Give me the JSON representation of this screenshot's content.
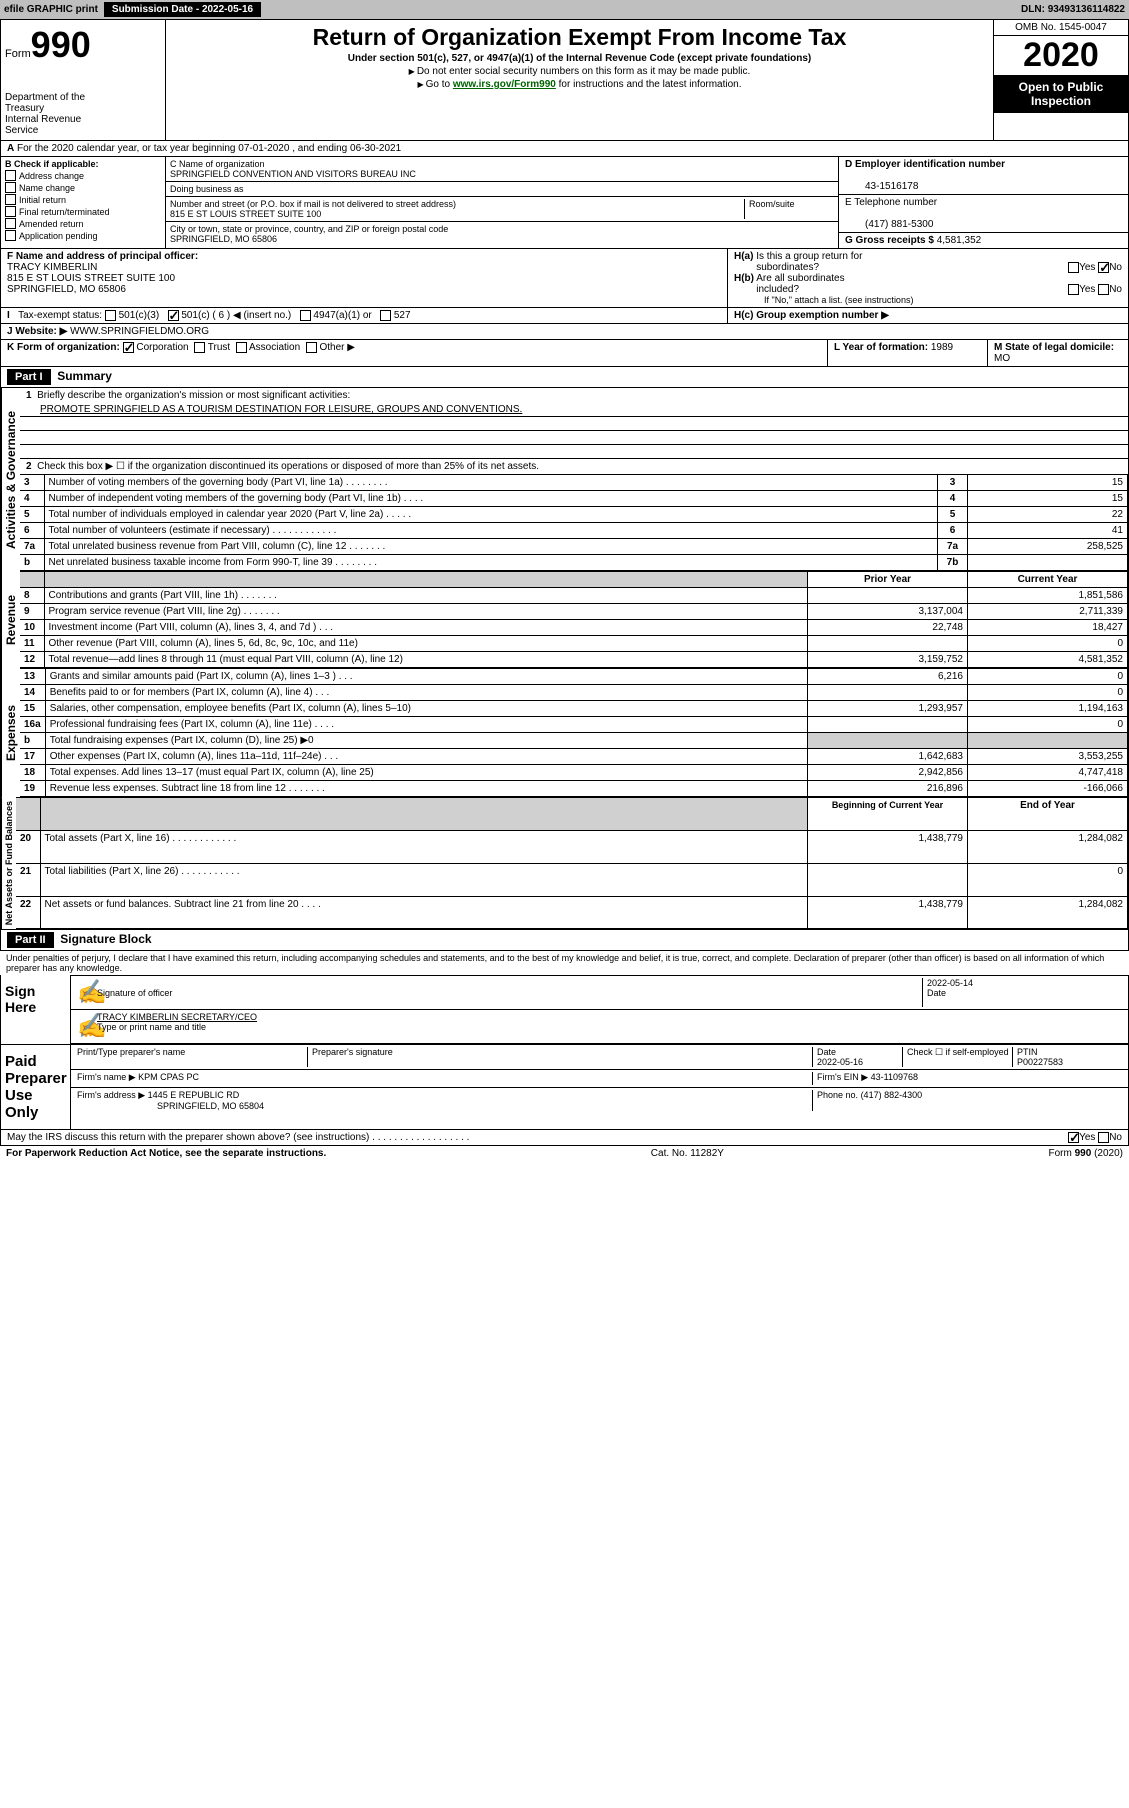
{
  "topbar": {
    "efile": "efile GRAPHIC print",
    "sub_label": "Submission Date",
    "sub_date": "2022-05-16",
    "dln_label": "DLN:",
    "dln": "93493136114822"
  },
  "header": {
    "form_label": "Form",
    "form_num": "990",
    "dept": "Department of the Treasury\nInternal Revenue Service",
    "title": "Return of Organization Exempt From Income Tax",
    "subtitle": "Under section 501(c), 527, or 4947(a)(1) of the Internal Revenue Code (except private foundations)",
    "note1": "Do not enter social security numbers on this form as it may be made public.",
    "note2_pre": "Go to ",
    "note2_link": "www.irs.gov/Form990",
    "note2_post": " for instructions and the latest information.",
    "omb": "OMB No. 1545-0047",
    "year": "2020",
    "pub": "Open to Public Inspection"
  },
  "section_a": "For the 2020 calendar year, or tax year beginning 07-01-2020     , and ending 06-30-2021",
  "b": {
    "label": "B Check if applicable:",
    "items": [
      "Address change",
      "Name change",
      "Initial return",
      "Final return/terminated",
      "Amended return",
      "Application pending"
    ]
  },
  "c": {
    "name_label": "C Name of organization",
    "name": "SPRINGFIELD CONVENTION AND VISITORS BUREAU INC",
    "dba_label": "Doing business as",
    "addr_label": "Number and street (or P.O. box if mail is not delivered to street address)",
    "room_label": "Room/suite",
    "addr": "815 E ST LOUIS STREET SUITE 100",
    "city_label": "City or town, state or province, country, and ZIP or foreign postal code",
    "city": "SPRINGFIELD, MO  65806"
  },
  "d": {
    "ein_label": "D Employer identification number",
    "ein": "43-1516178",
    "tel_label": "E Telephone number",
    "tel": "(417) 881-5300",
    "gross_label": "G Gross receipts $",
    "gross": "4,581,352"
  },
  "f": {
    "label": "F  Name and address of principal officer:",
    "name": "TRACY KIMBERLIN",
    "addr": "815 E ST LOUIS STREET SUITE 100",
    "city": "SPRINGFIELD, MO  65806"
  },
  "h": {
    "a": "H(a)  Is this a group return for subordinates?",
    "b": "H(b)  Are all subordinates included?",
    "note": "If \"No,\" attach a list. (see instructions)",
    "c": "H(c)  Group exemption number ▶"
  },
  "i": {
    "label": "Tax-exempt status:",
    "o1": "501(c)(3)",
    "o2": "501(c) ( 6 ) ◀ (insert no.)",
    "o3": "4947(a)(1) or",
    "o4": "527"
  },
  "j": {
    "label": "J   Website: ▶",
    "val": "WWW.SPRINGFIELDMO.ORG"
  },
  "k": {
    "label": "K Form of organization:",
    "o1": "Corporation",
    "o2": "Trust",
    "o3": "Association",
    "o4": "Other ▶"
  },
  "l": {
    "label": "L Year of formation:",
    "val": "1989"
  },
  "m": {
    "label": "M State of legal domicile:",
    "val": "MO"
  },
  "part1": {
    "hdr": "Part I",
    "title": "Summary",
    "side_gov": "Activities & Governance",
    "side_rev": "Revenue",
    "side_exp": "Expenses",
    "side_net": "Net Assets or Fund Balances",
    "l1": "Briefly describe the organization's mission or most significant activities:",
    "mission": "PROMOTE SPRINGFIELD AS A TOURISM DESTINATION FOR LEISURE, GROUPS AND CONVENTIONS.",
    "l2": "Check this box ▶ ☐  if the organization discontinued its operations or disposed of more than 25% of its net assets.",
    "rows_gov": [
      {
        "n": "3",
        "t": "Number of voting members of the governing body (Part VI, line 1a)   .    .    .    .    .    .    .    .",
        "b": "3",
        "v": "15"
      },
      {
        "n": "4",
        "t": "Number of independent voting members of the governing body (Part VI, line 1b)   .    .    .    .",
        "b": "4",
        "v": "15"
      },
      {
        "n": "5",
        "t": "Total number of individuals employed in calendar year 2020 (Part V, line 2a)   .    .    .    .    .",
        "b": "5",
        "v": "22"
      },
      {
        "n": "6",
        "t": "Total number of volunteers (estimate if necessary)   .    .    .    .    .    .    .    .    .    .    .    .",
        "b": "6",
        "v": "41"
      },
      {
        "n": "7a",
        "t": "Total unrelated business revenue from Part VIII, column (C), line 12   .    .    .    .    .    .    .",
        "b": "7a",
        "v": "258,525"
      },
      {
        "n": "b",
        "t": "Net unrelated business taxable income from Form 990-T, line 39   .    .    .    .    .    .    .    .",
        "b": "7b",
        "v": ""
      }
    ],
    "col_prior": "Prior Year",
    "col_curr": "Current Year",
    "rows_rev": [
      {
        "n": "8",
        "t": "Contributions and grants (Part VIII, line 1h)   .    .    .    .    .    .    .",
        "p": "",
        "c": "1,851,586"
      },
      {
        "n": "9",
        "t": "Program service revenue (Part VIII, line 2g)   .    .    .    .    .    .    .",
        "p": "3,137,004",
        "c": "2,711,339"
      },
      {
        "n": "10",
        "t": "Investment income (Part VIII, column (A), lines 3, 4, and 7d )   .    .    .",
        "p": "22,748",
        "c": "18,427"
      },
      {
        "n": "11",
        "t": "Other revenue (Part VIII, column (A), lines 5, 6d, 8c, 9c, 10c, and 11e)",
        "p": "",
        "c": "0"
      },
      {
        "n": "12",
        "t": "Total revenue—add lines 8 through 11 (must equal Part VIII, column (A), line 12)",
        "p": "3,159,752",
        "c": "4,581,352"
      }
    ],
    "rows_exp": [
      {
        "n": "13",
        "t": "Grants and similar amounts paid (Part IX, column (A), lines 1–3 )   .    .    .",
        "p": "6,216",
        "c": "0"
      },
      {
        "n": "14",
        "t": "Benefits paid to or for members (Part IX, column (A), line 4)   .    .    .",
        "p": "",
        "c": "0"
      },
      {
        "n": "15",
        "t": "Salaries, other compensation, employee benefits (Part IX, column (A), lines 5–10)",
        "p": "1,293,957",
        "c": "1,194,163"
      },
      {
        "n": "16a",
        "t": "Professional fundraising fees (Part IX, column (A), line 11e)   .    .    .    .",
        "p": "",
        "c": "0"
      },
      {
        "n": "b",
        "t": "Total fundraising expenses (Part IX, column (D), line 25) ▶0",
        "p": "shade",
        "c": "shade"
      },
      {
        "n": "17",
        "t": "Other expenses (Part IX, column (A), lines 11a–11d, 11f–24e)   .    .    .",
        "p": "1,642,683",
        "c": "3,553,255"
      },
      {
        "n": "18",
        "t": "Total expenses. Add lines 13–17 (must equal Part IX, column (A), line 25)",
        "p": "2,942,856",
        "c": "4,747,418"
      },
      {
        "n": "19",
        "t": "Revenue less expenses. Subtract line 18 from line 12   .    .    .    .    .    .    .",
        "p": "216,896",
        "c": "-166,066"
      }
    ],
    "col_beg": "Beginning of Current Year",
    "col_end": "End of Year",
    "rows_net": [
      {
        "n": "20",
        "t": "Total assets (Part X, line 16)   .    .    .    .    .    .    .    .    .    .    .    .",
        "p": "1,438,779",
        "c": "1,284,082"
      },
      {
        "n": "21",
        "t": "Total liabilities (Part X, line 26)   .    .    .    .    .    .    .    .    .    .    .",
        "p": "",
        "c": "0"
      },
      {
        "n": "22",
        "t": "Net assets or fund balances. Subtract line 21 from line 20   .    .    .    .",
        "p": "1,438,779",
        "c": "1,284,082"
      }
    ]
  },
  "part2": {
    "hdr": "Part II",
    "title": "Signature Block",
    "penalty": "Under penalties of perjury, I declare that I have examined this return, including accompanying schedules and statements, and to the best of my knowledge and belief, it is true, correct, and complete. Declaration of preparer (other than officer) is based on all information of which preparer has any knowledge.",
    "sign_here": "Sign Here",
    "sig_officer": "Signature of officer",
    "sig_date": "Date",
    "sig_date_val": "2022-05-14",
    "sig_name": "TRACY KIMBERLIN  SECRETARY/CEO",
    "sig_name_label": "Type or print name and title",
    "paid": "Paid Preparer Use Only",
    "prep_name_label": "Print/Type preparer's name",
    "prep_sig_label": "Preparer's signature",
    "prep_date_label": "Date",
    "prep_date": "2022-05-16",
    "prep_check": "Check ☐ if self-employed",
    "ptin_label": "PTIN",
    "ptin": "P00227583",
    "firm_name_label": "Firm's name     ▶",
    "firm_name": "KPM CPAS PC",
    "firm_ein_label": "Firm's EIN ▶",
    "firm_ein": "43-1109768",
    "firm_addr_label": "Firm's address ▶",
    "firm_addr": "1445 E REPUBLIC RD",
    "firm_city": "SPRINGFIELD, MO  65804",
    "phone_label": "Phone no.",
    "phone": "(417) 882-4300",
    "discuss": "May the IRS discuss this return with the preparer shown above? (see instructions)   .    .    .    .    .    .    .    .    .    .    .    .    .    .    .    .    .    .",
    "footer_left": "For Paperwork Reduction Act Notice, see the separate instructions.",
    "footer_mid": "Cat. No. 11282Y",
    "footer_right": "Form 990 (2020)"
  }
}
